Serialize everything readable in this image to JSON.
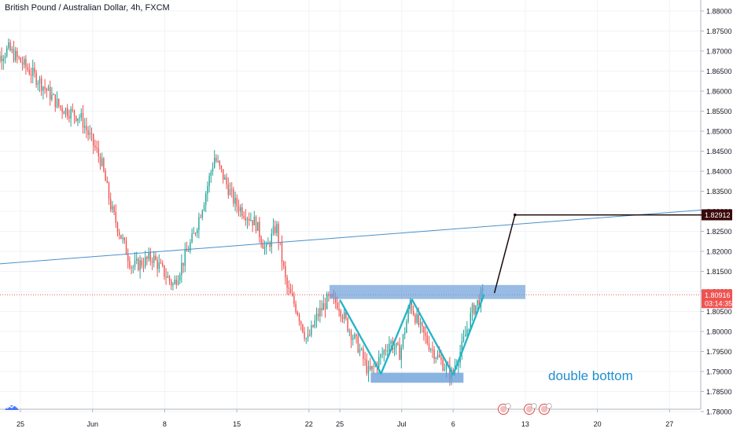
{
  "header": {
    "title": "British Pound / Australian Dollar, 4h, FXCM"
  },
  "annotation": {
    "text": "double bottom"
  },
  "colors": {
    "up": "#26a69a",
    "down": "#ef5350",
    "trendline": "#4a90c8",
    "pattern": "#26b5c8",
    "zone": "#6ca0d8",
    "projection": "#1c0a0a",
    "current_price_line": "#ef5350",
    "target_tag": "#3b0a0a",
    "grid": "#f0f3f7",
    "axis_text": "#131722",
    "annotation": "#1e8fd0"
  },
  "chart_data": {
    "type": "candlestick",
    "symbol": "British Pound / Australian Dollar",
    "timeframe": "4h",
    "source": "FXCM",
    "y_axis": {
      "ticks": [
        "1.88000",
        "1.87500",
        "1.87000",
        "1.86500",
        "1.86000",
        "1.85500",
        "1.85000",
        "1.84500",
        "1.84000",
        "1.83500",
        "1.83000",
        "1.82500",
        "1.82000",
        "1.81500",
        "1.81000",
        "1.80500",
        "1.80000",
        "1.79500",
        "1.79000",
        "1.78500",
        "1.78000"
      ],
      "range": [
        1.7775,
        1.8815
      ]
    },
    "x_axis": {
      "ticks": [
        "25",
        "Jun",
        "8",
        "15",
        "22",
        "25",
        "Jul",
        "6",
        "13",
        "20",
        "27"
      ],
      "date_ticks": [
        "2020-05-25",
        "2020-06-01",
        "2020-06-08",
        "2020-06-15",
        "2020-06-22",
        "2020-06-25",
        "2020-07-01",
        "2020-07-06",
        "2020-07-13",
        "2020-07-20",
        "2020-07-27"
      ]
    },
    "price_labels": {
      "current": "1.80916",
      "countdown": "03:14:35",
      "target": "1.82912"
    },
    "price_path": [
      {
        "date": "2020-05-22",
        "price": 1.866
      },
      {
        "date": "2020-05-24",
        "price": 1.8705
      },
      {
        "date": "2020-05-27",
        "price": 1.8625
      },
      {
        "date": "2020-05-29",
        "price": 1.856
      },
      {
        "date": "2020-05-31",
        "price": 1.8535
      },
      {
        "date": "2020-06-02",
        "price": 1.8425
      },
      {
        "date": "2020-06-03",
        "price": 1.8305
      },
      {
        "date": "2020-06-05",
        "price": 1.816
      },
      {
        "date": "2020-06-07",
        "price": 1.8185
      },
      {
        "date": "2020-06-09",
        "price": 1.8115
      },
      {
        "date": "2020-06-11",
        "price": 1.824
      },
      {
        "date": "2020-06-12",
        "price": 1.833
      },
      {
        "date": "2020-06-13",
        "price": 1.8435
      },
      {
        "date": "2020-06-15",
        "price": 1.832
      },
      {
        "date": "2020-06-17",
        "price": 1.827
      },
      {
        "date": "2020-06-18",
        "price": 1.82
      },
      {
        "date": "2020-06-19",
        "price": 1.8265
      },
      {
        "date": "2020-06-20",
        "price": 1.811
      },
      {
        "date": "2020-06-21",
        "price": 1.8055
      },
      {
        "date": "2020-06-22",
        "price": 1.7975
      },
      {
        "date": "2020-06-23",
        "price": 1.804
      },
      {
        "date": "2020-06-24",
        "price": 1.808
      },
      {
        "date": "2020-06-25",
        "price": 1.807
      },
      {
        "date": "2020-06-26",
        "price": 1.801
      },
      {
        "date": "2020-06-27",
        "price": 1.796
      },
      {
        "date": "2020-06-28",
        "price": 1.7895
      },
      {
        "date": "2020-06-29",
        "price": 1.793
      },
      {
        "date": "2020-06-30",
        "price": 1.7975
      },
      {
        "date": "2020-07-01",
        "price": 1.7945
      },
      {
        "date": "2020-07-02",
        "price": 1.807
      },
      {
        "date": "2020-07-03",
        "price": 1.8005
      },
      {
        "date": "2020-07-04",
        "price": 1.796
      },
      {
        "date": "2020-07-05",
        "price": 1.7925
      },
      {
        "date": "2020-07-06",
        "price": 1.7892
      },
      {
        "date": "2020-07-07",
        "price": 1.796
      },
      {
        "date": "2020-07-08",
        "price": 1.805
      },
      {
        "date": "2020-07-09",
        "price": 1.8092
      }
    ],
    "drawings": {
      "trendline": {
        "from": {
          "date": "2020-05-21",
          "price": 1.8165
        },
        "to": {
          "date": "2020-07-31",
          "price": 1.8305
        }
      },
      "resistance_zone": {
        "date_from": "2020-06-24",
        "date_to": "2020-07-13",
        "price_low": 1.8081,
        "price_high": 1.8116
      },
      "support_zone": {
        "date_from": "2020-06-28",
        "date_to": "2020-07-07",
        "price_low": 1.7872,
        "price_high": 1.7897
      },
      "double_bottom": [
        {
          "date": "2020-06-25",
          "price": 1.8079
        },
        {
          "date": "2020-06-29",
          "price": 1.7895
        },
        {
          "date": "2020-07-02",
          "price": 1.808
        },
        {
          "date": "2020-07-06",
          "price": 1.7892
        },
        {
          "date": "2020-07-09",
          "price": 1.8092
        }
      ],
      "projection": [
        {
          "date": "2020-07-10",
          "price": 1.8096
        },
        {
          "date": "2020-07-12",
          "price": 1.8291
        },
        {
          "date": "2020-07-31",
          "price": 1.8291
        }
      ]
    }
  }
}
